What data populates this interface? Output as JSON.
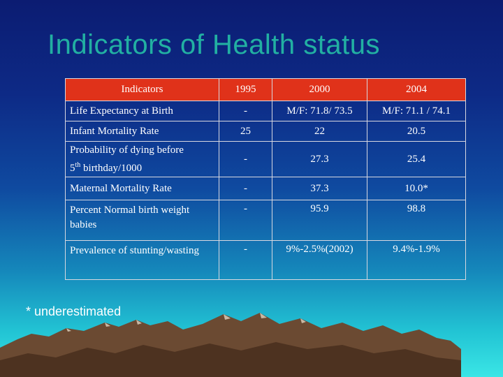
{
  "title": "Indicators of Health status",
  "table": {
    "headers": [
      "Indicators",
      "1995",
      "2000",
      "2004"
    ],
    "rows": [
      {
        "label": "Life Expectancy at Birth",
        "y1995": "-",
        "y2000": "M/F: 71.8/ 73.5",
        "y2004": "M/F: 71.1 / 74.1"
      },
      {
        "label": "Infant Mortality Rate",
        "y1995": "25",
        "y2000": "22",
        "y2004": "20.5"
      },
      {
        "label_part1": "Probability of dying before",
        "label_part2_pre": "5",
        "label_part2_sup": "th",
        "label_part2_post": " birthday/1000",
        "y1995": "-",
        "y2000": "27.3",
        "y2004": "25.4"
      },
      {
        "label": "Maternal Mortality Rate",
        "y1995": "-",
        "y2000": "37.3",
        "y2004": "10.0*"
      },
      {
        "label": "Percent Normal birth weight babies",
        "y1995": "-",
        "y2000": "95.9",
        "y2004": "98.8"
      },
      {
        "label": "Prevalence of stunting/wasting",
        "y1995": "-",
        "y2000": "9%-2.5%(2002)",
        "y2004": "9.4%-1.9%"
      }
    ]
  },
  "footnote": "* underestimated",
  "colors": {
    "title": "#22b0a2",
    "header_bg": "#e0321a",
    "text": "#ffffff"
  }
}
